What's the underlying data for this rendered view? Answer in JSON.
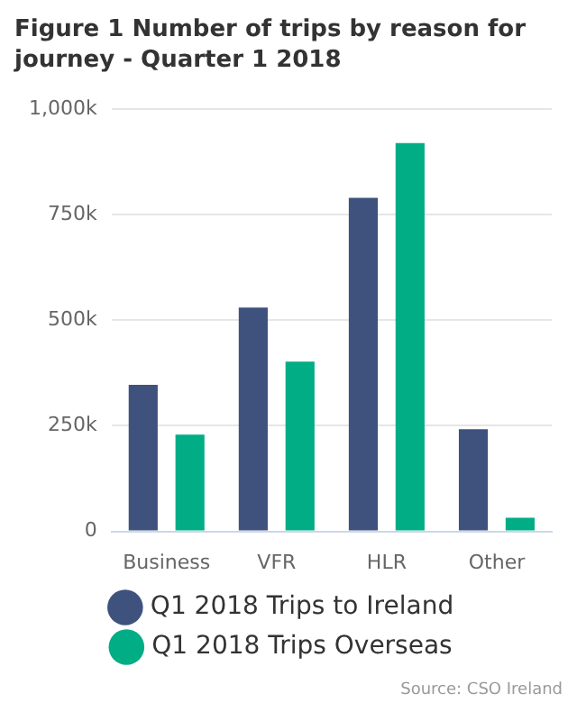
{
  "chart_data": {
    "type": "bar",
    "title": "Figure 1 Number of trips by reason for journey - Quarter 1 2018",
    "categories": [
      "Business",
      "VFR",
      "HLR",
      "Other"
    ],
    "series": [
      {
        "name": "Q1 2018 Trips to Ireland",
        "color": "#3f527e",
        "values": [
          347,
          530,
          790,
          242
        ]
      },
      {
        "name": "Q1 2018 Trips Overseas",
        "color": "#00ad85",
        "values": [
          229,
          402,
          920,
          32
        ]
      }
    ],
    "ylim": [
      0,
      1000
    ],
    "yticks": [
      {
        "value": 0,
        "label": "0"
      },
      {
        "value": 250,
        "label": "250k"
      },
      {
        "value": 500,
        "label": "500k"
      },
      {
        "value": 750,
        "label": "750k"
      },
      {
        "value": 1000,
        "label": "1,000k"
      }
    ],
    "grid": "y",
    "legend": "bottom",
    "annotations": [
      "Source: CSO Ireland"
    ]
  }
}
